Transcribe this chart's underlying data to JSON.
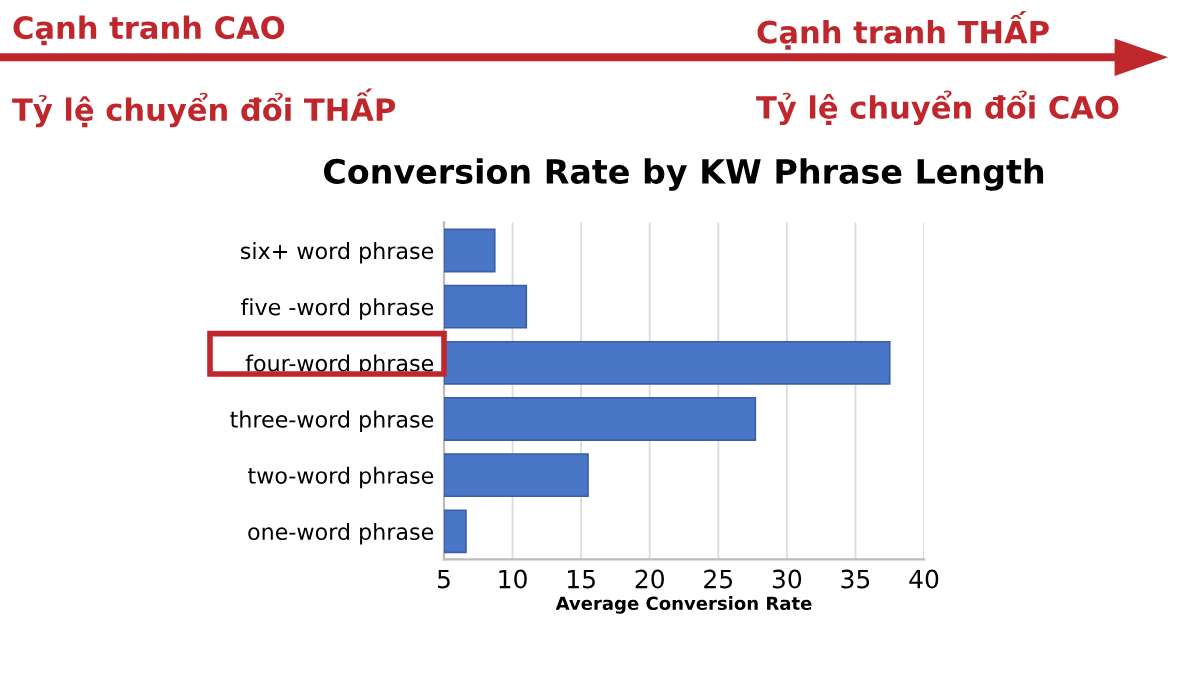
{
  "chart_data": {
    "type": "bar",
    "orientation": "horizontal",
    "title": "Conversion Rate by KW Phrase Length",
    "xlabel": "Average Conversion Rate",
    "categories": [
      "six+ word phrase",
      "five -word phrase",
      "four-word phrase",
      "three-word phrase",
      "two-word phrase",
      "one-word phrase"
    ],
    "values": [
      8.7,
      11,
      37.5,
      27.7,
      15.5,
      6.6
    ],
    "color": "#4a76c8",
    "xlim": [
      5,
      40
    ],
    "xticks": [
      5,
      10,
      15,
      20,
      25,
      30,
      35,
      40
    ],
    "grid": "x",
    "annotations": [
      "Cạnh tranh CAO",
      "Cạnh tranh THẤP",
      "Tỷ lệ chuyển đổi THẤP",
      "Tỷ lệ chuyển đổi CAO"
    ]
  }
}
